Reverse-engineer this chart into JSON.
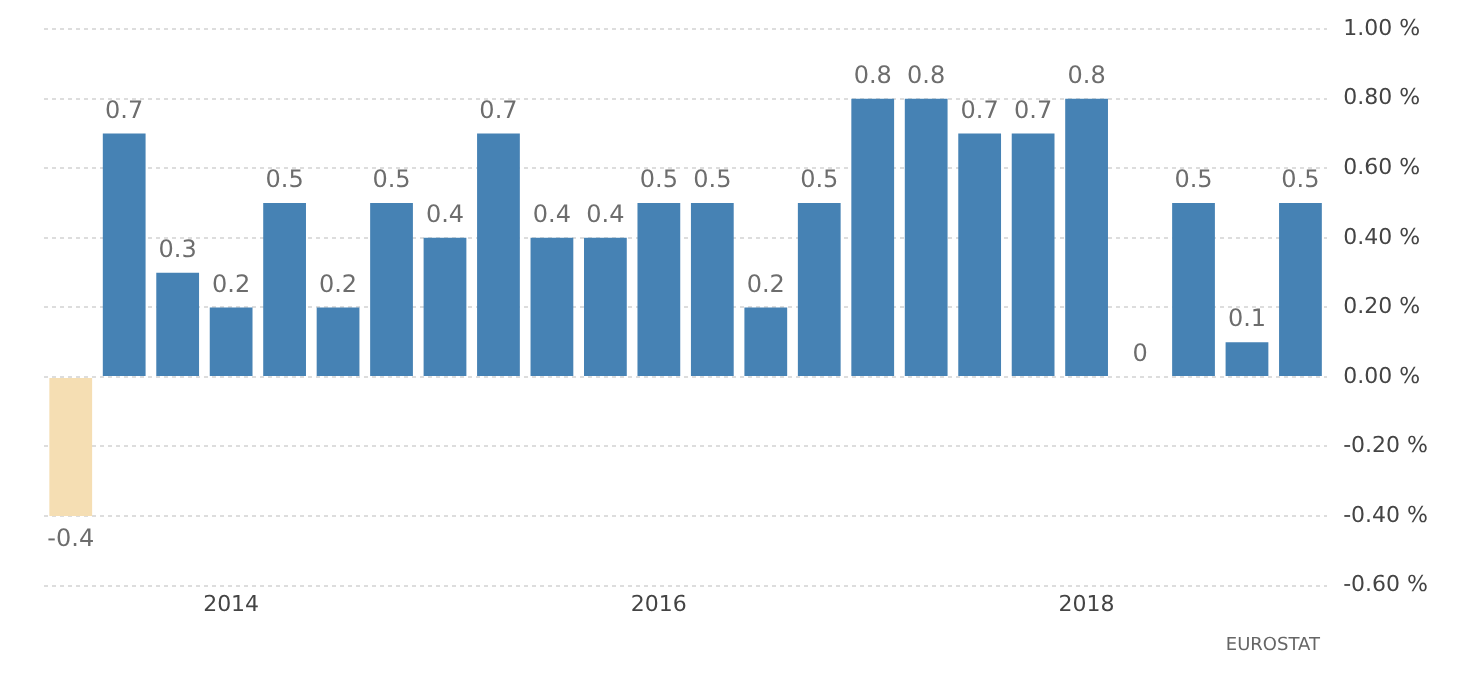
{
  "chart_data": {
    "type": "bar",
    "categories": [
      null,
      null,
      null,
      "2014",
      null,
      null,
      null,
      null,
      null,
      null,
      null,
      "2016",
      null,
      null,
      null,
      null,
      null,
      null,
      null,
      "2018",
      null,
      null,
      null,
      null
    ],
    "values": [
      -0.4,
      0.7,
      0.3,
      0.2,
      0.5,
      0.2,
      0.5,
      0.4,
      0.7,
      0.4,
      0.4,
      0.5,
      0.5,
      0.2,
      0.5,
      0.8,
      0.8,
      0.7,
      0.7,
      0.8,
      0,
      0.5,
      0.1,
      0.5
    ],
    "colors": [
      "#f5deb3",
      "#4682b4",
      "#4682b4",
      "#4682b4",
      "#4682b4",
      "#4682b4",
      "#4682b4",
      "#4682b4",
      "#4682b4",
      "#4682b4",
      "#4682b4",
      "#4682b4",
      "#4682b4",
      "#4682b4",
      "#4682b4",
      "#4682b4",
      "#4682b4",
      "#4682b4",
      "#4682b4",
      "#4682b4",
      "#4682b4",
      "#4682b4",
      "#4682b4",
      "#4682b4"
    ],
    "ylim": [
      -0.6,
      1.0
    ],
    "yticks": [
      {
        "value": -0.6,
        "label": "-0.60 %"
      },
      {
        "value": -0.4,
        "label": "-0.40 %"
      },
      {
        "value": -0.2,
        "label": "-0.20 %"
      },
      {
        "value": 0,
        "label": "0.00 %"
      },
      {
        "value": 0.2,
        "label": "0.20 %"
      },
      {
        "value": 0.4,
        "label": "0.40 %"
      },
      {
        "value": 0.6,
        "label": "0.60 %"
      },
      {
        "value": 0.8,
        "label": "0.80 %"
      },
      {
        "value": 1.0,
        "label": "1.00 %"
      }
    ],
    "grid": "y",
    "data_labels": true,
    "legend": false,
    "annotations": [
      "EUROSTAT"
    ]
  }
}
